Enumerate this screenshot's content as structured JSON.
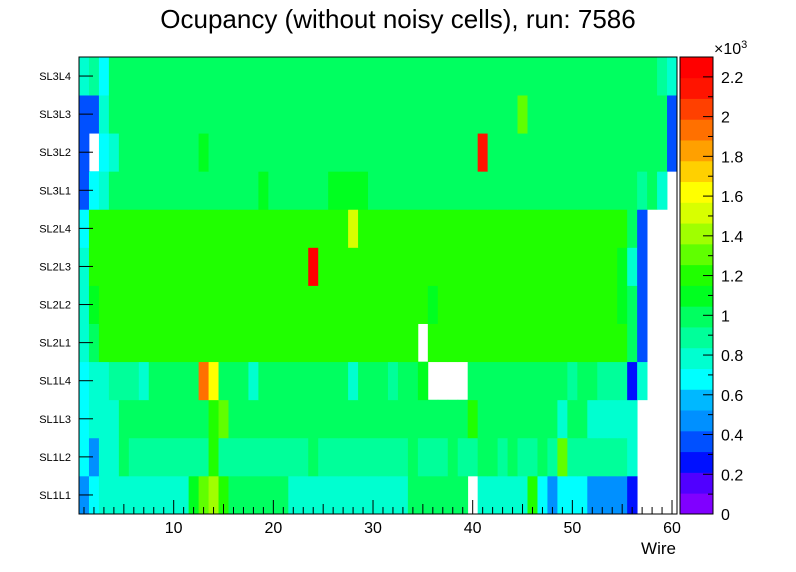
{
  "chart_data": {
    "type": "heatmap",
    "title": "Ocupancy (without noisy cells), run: 7586",
    "xlabel": "Wire",
    "ylabel": "",
    "x_ticks": [
      10,
      20,
      30,
      40,
      50,
      60
    ],
    "xlim": [
      0.5,
      60.5
    ],
    "rows": [
      "SL1L1",
      "SL1L2",
      "SL1L3",
      "SL1L4",
      "SL2L1",
      "SL2L2",
      "SL2L3",
      "SL2L4",
      "SL3L1",
      "SL3L2",
      "SL3L3",
      "SL3L4"
    ],
    "z_range": [
      0,
      2300
    ],
    "z_ticks": [
      0,
      0.2,
      0.4,
      0.6,
      0.8,
      1,
      1.2,
      1.4,
      1.6,
      1.8,
      2,
      2.2
    ],
    "z_exponent_label": "×10",
    "z_exponent_power": "3",
    "palette": [
      "#8000ff",
      "#5000ff",
      "#0010ff",
      "#0050ff",
      "#0090ff",
      "#00b8ff",
      "#00ffff",
      "#00ffd0",
      "#00ff9a",
      "#00ff60",
      "#00ff20",
      "#20ff00",
      "#60ff00",
      "#a0ff00",
      "#d8ff00",
      "#ffff00",
      "#ffd000",
      "#ffa000",
      "#ff7000",
      "#ff4000",
      "#ff1400",
      "#ff0000"
    ],
    "values": [
      [
        490,
        650,
        820,
        820,
        820,
        820,
        820,
        820,
        820,
        820,
        820,
        1130,
        1350,
        1420,
        1180,
        980,
        980,
        980,
        980,
        980,
        980,
        820,
        820,
        820,
        820,
        820,
        820,
        820,
        820,
        820,
        820,
        820,
        820,
        980,
        980,
        980,
        980,
        980,
        980,
        0,
        820,
        820,
        820,
        820,
        820,
        1180,
        650,
        490,
        650,
        650,
        650,
        490,
        490,
        490,
        490,
        300,
        0,
        0,
        0,
        0
      ],
      [
        650,
        490,
        820,
        820,
        980,
        900,
        900,
        900,
        900,
        900,
        900,
        900,
        900,
        1180,
        900,
        900,
        900,
        900,
        900,
        900,
        900,
        900,
        900,
        980,
        900,
        900,
        900,
        900,
        900,
        900,
        900,
        900,
        900,
        980,
        900,
        900,
        900,
        980,
        900,
        900,
        980,
        980,
        900,
        980,
        900,
        900,
        980,
        900,
        1350,
        900,
        900,
        900,
        900,
        900,
        900,
        820,
        0,
        0,
        0,
        0
      ],
      [
        650,
        820,
        820,
        820,
        980,
        980,
        980,
        980,
        980,
        980,
        980,
        980,
        980,
        1180,
        1350,
        980,
        980,
        980,
        980,
        980,
        980,
        980,
        980,
        980,
        980,
        980,
        980,
        980,
        980,
        980,
        980,
        980,
        980,
        980,
        980,
        980,
        980,
        980,
        980,
        1180,
        980,
        980,
        980,
        980,
        980,
        980,
        980,
        980,
        820,
        980,
        980,
        820,
        820,
        820,
        820,
        820,
        0,
        0,
        0,
        0
      ],
      [
        650,
        820,
        820,
        900,
        900,
        900,
        820,
        980,
        980,
        980,
        980,
        980,
        1950,
        1620,
        980,
        980,
        980,
        820,
        980,
        980,
        980,
        980,
        980,
        980,
        980,
        980,
        980,
        820,
        980,
        980,
        980,
        900,
        980,
        980,
        1080,
        0,
        0,
        0,
        0,
        980,
        980,
        980,
        980,
        980,
        980,
        980,
        980,
        980,
        980,
        900,
        980,
        980,
        900,
        900,
        900,
        300,
        820,
        0,
        0,
        0
      ],
      [
        820,
        980,
        1180,
        1180,
        1180,
        1180,
        1180,
        1180,
        1180,
        1180,
        1180,
        1180,
        1180,
        1180,
        1180,
        1180,
        1180,
        1180,
        1180,
        1180,
        1180,
        1180,
        1180,
        1180,
        1180,
        1180,
        1180,
        1180,
        1180,
        1180,
        1180,
        1180,
        1180,
        1180,
        0,
        1180,
        1180,
        1180,
        1180,
        1180,
        1180,
        1180,
        1180,
        1180,
        1180,
        1180,
        1180,
        1180,
        1180,
        1180,
        1180,
        1180,
        1180,
        1180,
        1180,
        980,
        350,
        0,
        0,
        0
      ],
      [
        820,
        1080,
        1180,
        1180,
        1180,
        1180,
        1180,
        1180,
        1180,
        1180,
        1180,
        1180,
        1180,
        1180,
        1180,
        1180,
        1180,
        1180,
        1180,
        1180,
        1180,
        1180,
        1180,
        1180,
        1180,
        1180,
        1180,
        1180,
        1180,
        1180,
        1180,
        1180,
        1180,
        1180,
        1180,
        1080,
        1180,
        1180,
        1180,
        1180,
        1180,
        1180,
        1180,
        1180,
        1180,
        1180,
        1180,
        1180,
        1180,
        1180,
        1180,
        1180,
        1180,
        1180,
        1080,
        980,
        350,
        0,
        0,
        0
      ],
      [
        820,
        1180,
        1180,
        1180,
        1180,
        1180,
        1180,
        1180,
        1180,
        1180,
        1180,
        1180,
        1180,
        1180,
        1180,
        1180,
        1180,
        1180,
        1180,
        1180,
        1180,
        1180,
        1180,
        2200,
        1180,
        1180,
        1180,
        1180,
        1180,
        1180,
        1180,
        1180,
        1180,
        1180,
        1180,
        1180,
        1180,
        1180,
        1180,
        1180,
        1180,
        1180,
        1180,
        1180,
        1180,
        1180,
        1180,
        1180,
        1180,
        1180,
        1180,
        1180,
        1180,
        1180,
        1080,
        820,
        350,
        0,
        0,
        0
      ],
      [
        650,
        1180,
        1180,
        1180,
        1180,
        1180,
        1180,
        1180,
        1180,
        1180,
        1180,
        1180,
        1180,
        1180,
        1180,
        1180,
        1180,
        1180,
        1180,
        1180,
        1180,
        1180,
        1180,
        1180,
        1180,
        1180,
        1180,
        1480,
        1180,
        1180,
        1180,
        1180,
        1180,
        1180,
        1180,
        1180,
        1180,
        1180,
        1180,
        1180,
        1180,
        1180,
        1180,
        1180,
        1180,
        1180,
        1180,
        1180,
        1180,
        1180,
        1180,
        1180,
        1180,
        1180,
        1180,
        980,
        350,
        0,
        0,
        0
      ],
      [
        350,
        650,
        820,
        980,
        980,
        980,
        980,
        980,
        980,
        980,
        980,
        980,
        980,
        980,
        980,
        980,
        980,
        980,
        1080,
        980,
        980,
        980,
        980,
        980,
        980,
        1080,
        1080,
        1080,
        1080,
        980,
        980,
        980,
        980,
        980,
        980,
        980,
        980,
        980,
        980,
        980,
        980,
        980,
        980,
        980,
        980,
        980,
        980,
        980,
        980,
        980,
        980,
        980,
        980,
        980,
        980,
        980,
        900,
        980,
        820,
        0
      ],
      [
        350,
        0,
        650,
        820,
        980,
        980,
        980,
        980,
        980,
        980,
        980,
        980,
        1080,
        980,
        980,
        980,
        980,
        980,
        980,
        980,
        980,
        980,
        980,
        980,
        980,
        980,
        980,
        980,
        980,
        980,
        980,
        980,
        980,
        980,
        980,
        980,
        980,
        980,
        980,
        980,
        2100,
        980,
        980,
        980,
        980,
        980,
        980,
        980,
        980,
        980,
        980,
        980,
        980,
        980,
        980,
        980,
        980,
        980,
        980,
        350
      ],
      [
        350,
        350,
        820,
        980,
        980,
        980,
        980,
        980,
        980,
        980,
        980,
        980,
        980,
        980,
        980,
        980,
        980,
        980,
        980,
        980,
        980,
        980,
        980,
        980,
        980,
        980,
        980,
        980,
        980,
        980,
        980,
        980,
        980,
        980,
        980,
        980,
        980,
        980,
        980,
        980,
        980,
        980,
        980,
        980,
        1350,
        980,
        980,
        980,
        980,
        980,
        980,
        980,
        980,
        980,
        980,
        980,
        980,
        980,
        980,
        350
      ],
      [
        820,
        900,
        650,
        980,
        980,
        980,
        980,
        980,
        980,
        980,
        980,
        980,
        980,
        980,
        980,
        980,
        980,
        980,
        980,
        980,
        980,
        980,
        980,
        980,
        980,
        980,
        980,
        980,
        980,
        980,
        980,
        980,
        980,
        980,
        980,
        980,
        980,
        980,
        980,
        980,
        980,
        980,
        980,
        980,
        980,
        980,
        980,
        980,
        980,
        980,
        980,
        980,
        980,
        980,
        980,
        980,
        980,
        980,
        900,
        820
      ]
    ]
  }
}
